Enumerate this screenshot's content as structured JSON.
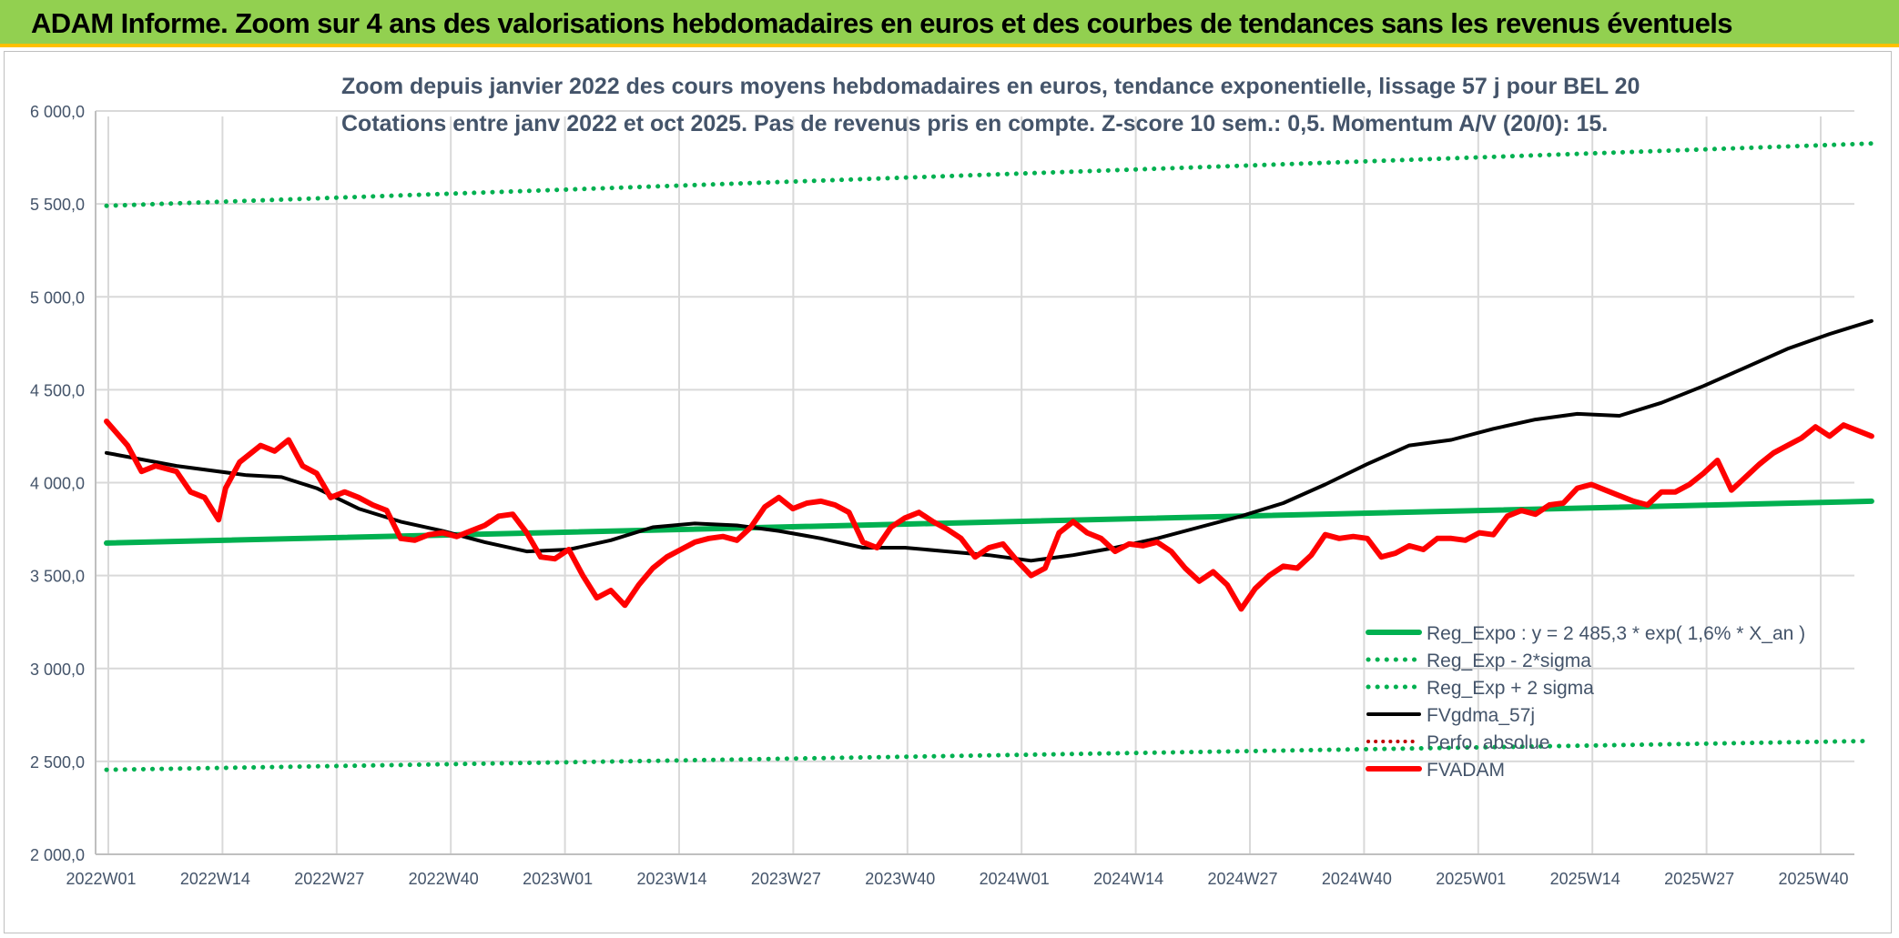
{
  "banner": {
    "title": "ADAM Informe. Zoom sur 4 ans des valorisations hebdomadaires en euros et des courbes de tendances sans les revenus éventuels"
  },
  "colors": {
    "banner_bg": "#92d050",
    "banner_border": "#ffc000",
    "reg_expo": "#00b050",
    "fvgdma": "#000000",
    "fvadam": "#ff0000",
    "perfo": "#c00000",
    "grid": "#d9d9d9",
    "text": "#44546a"
  },
  "chart_data": {
    "type": "line",
    "title": "Zoom depuis janvier 2022 des cours moyens hebdomadaires en euros, tendance exponentielle, lissage 57 j pour BEL 20",
    "subtitle": "Cotations entre janv 2022 et oct 2025. Pas de revenus pris en compte. Z-score 10 sem.: 0,5. Momentum A/V (20/0): 15.",
    "xlabel": "",
    "ylabel": "",
    "ylim": [
      2000,
      6000
    ],
    "yticks": [
      "2 000,0",
      "2 500,0",
      "3 000,0",
      "3 500,0",
      "4 000,0",
      "4 500,0",
      "5 000,0",
      "5 500,0",
      "6 000,0"
    ],
    "x_tick_labels": [
      "2022W01",
      "2022W14",
      "2022W27",
      "2022W40",
      "2023W01",
      "2023W14",
      "2023W27",
      "2023W40",
      "2024W01",
      "2024W14",
      "2024W27",
      "2024W40",
      "2025W01",
      "2025W14",
      "2025W27",
      "2025W40"
    ],
    "n_weeks": 202,
    "legend_position": "lower-right",
    "series": [
      {
        "name": "Reg_Expo : y = 2 485,3 * exp( 1,6% *  X_an )",
        "style": "solid",
        "color": "#00b050",
        "width": 6,
        "points": [
          [
            0,
            3675
          ],
          [
            201,
            3900
          ]
        ]
      },
      {
        "name": "Reg_Exp - 2*sigma",
        "style": "dotted",
        "color": "#00b050",
        "width": 5,
        "points": [
          [
            0,
            2455
          ],
          [
            201,
            2610
          ]
        ]
      },
      {
        "name": "Reg_Exp + 2 sigma",
        "style": "dotted",
        "color": "#00b050",
        "width": 5,
        "points": [
          [
            0,
            5490
          ],
          [
            201,
            5825
          ]
        ]
      },
      {
        "name": "FVgdma_57j",
        "style": "solid",
        "color": "#000000",
        "width": 4,
        "points": [
          [
            0,
            4160
          ],
          [
            10,
            4090
          ],
          [
            20,
            4040
          ],
          [
            25,
            4030
          ],
          [
            30,
            3970
          ],
          [
            36,
            3860
          ],
          [
            42,
            3790
          ],
          [
            48,
            3740
          ],
          [
            54,
            3680
          ],
          [
            60,
            3630
          ],
          [
            66,
            3640
          ],
          [
            72,
            3690
          ],
          [
            78,
            3760
          ],
          [
            84,
            3780
          ],
          [
            90,
            3770
          ],
          [
            96,
            3740
          ],
          [
            102,
            3700
          ],
          [
            108,
            3650
          ],
          [
            114,
            3650
          ],
          [
            120,
            3630
          ],
          [
            126,
            3610
          ],
          [
            132,
            3580
          ],
          [
            138,
            3610
          ],
          [
            144,
            3650
          ],
          [
            150,
            3700
          ],
          [
            156,
            3760
          ],
          [
            162,
            3820
          ],
          [
            168,
            3890
          ],
          [
            174,
            3990
          ],
          [
            180,
            4100
          ],
          [
            186,
            4200
          ],
          [
            192,
            4230
          ],
          [
            198,
            4290
          ],
          [
            204,
            4340
          ],
          [
            210,
            4370
          ],
          [
            216,
            4360
          ],
          [
            222,
            4430
          ],
          [
            228,
            4520
          ],
          [
            234,
            4620
          ],
          [
            240,
            4720
          ],
          [
            246,
            4800
          ],
          [
            252,
            4870
          ]
        ]
      },
      {
        "name": "Perfo. absolue",
        "style": "dotted",
        "color": "#c00000",
        "width": 4,
        "points": []
      },
      {
        "name": "FVADAM",
        "style": "solid",
        "color": "#ff0000",
        "width": 6,
        "points": [
          [
            0,
            4330
          ],
          [
            3,
            4200
          ],
          [
            5,
            4060
          ],
          [
            7,
            4090
          ],
          [
            10,
            4060
          ],
          [
            12,
            3950
          ],
          [
            14,
            3920
          ],
          [
            16,
            3800
          ],
          [
            17,
            3970
          ],
          [
            19,
            4110
          ],
          [
            22,
            4200
          ],
          [
            24,
            4170
          ],
          [
            26,
            4230
          ],
          [
            28,
            4090
          ],
          [
            30,
            4050
          ],
          [
            32,
            3920
          ],
          [
            34,
            3950
          ],
          [
            36,
            3920
          ],
          [
            38,
            3880
          ],
          [
            40,
            3850
          ],
          [
            42,
            3700
          ],
          [
            44,
            3690
          ],
          [
            46,
            3720
          ],
          [
            48,
            3730
          ],
          [
            50,
            3710
          ],
          [
            52,
            3740
          ],
          [
            54,
            3770
          ],
          [
            56,
            3820
          ],
          [
            58,
            3830
          ],
          [
            60,
            3730
          ],
          [
            62,
            3600
          ],
          [
            64,
            3590
          ],
          [
            66,
            3640
          ],
          [
            68,
            3500
          ],
          [
            70,
            3380
          ],
          [
            72,
            3420
          ],
          [
            74,
            3340
          ],
          [
            76,
            3450
          ],
          [
            78,
            3540
          ],
          [
            80,
            3600
          ],
          [
            82,
            3640
          ],
          [
            84,
            3680
          ],
          [
            86,
            3700
          ],
          [
            88,
            3710
          ],
          [
            90,
            3690
          ],
          [
            92,
            3760
          ],
          [
            94,
            3870
          ],
          [
            96,
            3920
          ],
          [
            98,
            3860
          ],
          [
            100,
            3890
          ],
          [
            102,
            3900
          ],
          [
            104,
            3880
          ],
          [
            106,
            3840
          ],
          [
            108,
            3680
          ],
          [
            110,
            3650
          ],
          [
            112,
            3760
          ],
          [
            114,
            3810
          ],
          [
            116,
            3840
          ],
          [
            118,
            3790
          ],
          [
            120,
            3750
          ],
          [
            122,
            3700
          ],
          [
            124,
            3600
          ],
          [
            126,
            3650
          ],
          [
            128,
            3670
          ],
          [
            130,
            3580
          ],
          [
            132,
            3500
          ],
          [
            134,
            3540
          ],
          [
            136,
            3730
          ],
          [
            138,
            3790
          ],
          [
            140,
            3730
          ],
          [
            142,
            3700
          ],
          [
            144,
            3630
          ],
          [
            146,
            3670
          ],
          [
            148,
            3660
          ],
          [
            150,
            3680
          ],
          [
            152,
            3630
          ],
          [
            154,
            3540
          ],
          [
            156,
            3470
          ],
          [
            158,
            3520
          ],
          [
            160,
            3450
          ],
          [
            162,
            3320
          ],
          [
            164,
            3430
          ],
          [
            166,
            3500
          ],
          [
            168,
            3550
          ],
          [
            170,
            3540
          ],
          [
            172,
            3610
          ],
          [
            174,
            3720
          ],
          [
            176,
            3700
          ],
          [
            178,
            3710
          ],
          [
            180,
            3700
          ],
          [
            182,
            3600
          ],
          [
            184,
            3620
          ],
          [
            186,
            3660
          ],
          [
            188,
            3640
          ],
          [
            190,
            3700
          ],
          [
            192,
            3700
          ],
          [
            194,
            3690
          ],
          [
            196,
            3730
          ],
          [
            198,
            3720
          ],
          [
            200,
            3820
          ],
          [
            202,
            3850
          ],
          [
            204,
            3830
          ],
          [
            206,
            3880
          ],
          [
            208,
            3890
          ],
          [
            210,
            3970
          ],
          [
            212,
            3990
          ],
          [
            214,
            3960
          ],
          [
            216,
            3930
          ],
          [
            218,
            3900
          ],
          [
            220,
            3880
          ],
          [
            222,
            3950
          ],
          [
            224,
            3950
          ],
          [
            226,
            3990
          ],
          [
            228,
            4050
          ],
          [
            230,
            4120
          ],
          [
            232,
            3960
          ],
          [
            234,
            4030
          ],
          [
            236,
            4100
          ],
          [
            238,
            4160
          ],
          [
            240,
            4200
          ],
          [
            242,
            4240
          ],
          [
            244,
            4300
          ],
          [
            246,
            4250
          ],
          [
            248,
            4310
          ],
          [
            250,
            4280
          ],
          [
            252,
            4250
          ]
        ]
      }
    ]
  },
  "legend": {
    "entries": [
      {
        "label": "Reg_Expo : y = 2 485,3 * exp( 1,6% *  X_an )",
        "style": "solid",
        "color": "#00b050",
        "width": 6
      },
      {
        "label": "Reg_Exp - 2*sigma",
        "style": "dotted",
        "color": "#00b050",
        "width": 5
      },
      {
        "label": "Reg_Exp + 2 sigma",
        "style": "dotted",
        "color": "#00b050",
        "width": 5
      },
      {
        "label": "FVgdma_57j",
        "style": "solid",
        "color": "#000000",
        "width": 4
      },
      {
        "label": "Perfo. absolue",
        "style": "dotted",
        "color": "#c00000",
        "width": 4
      },
      {
        "label": "FVADAM",
        "style": "solid",
        "color": "#ff0000",
        "width": 6
      }
    ]
  }
}
